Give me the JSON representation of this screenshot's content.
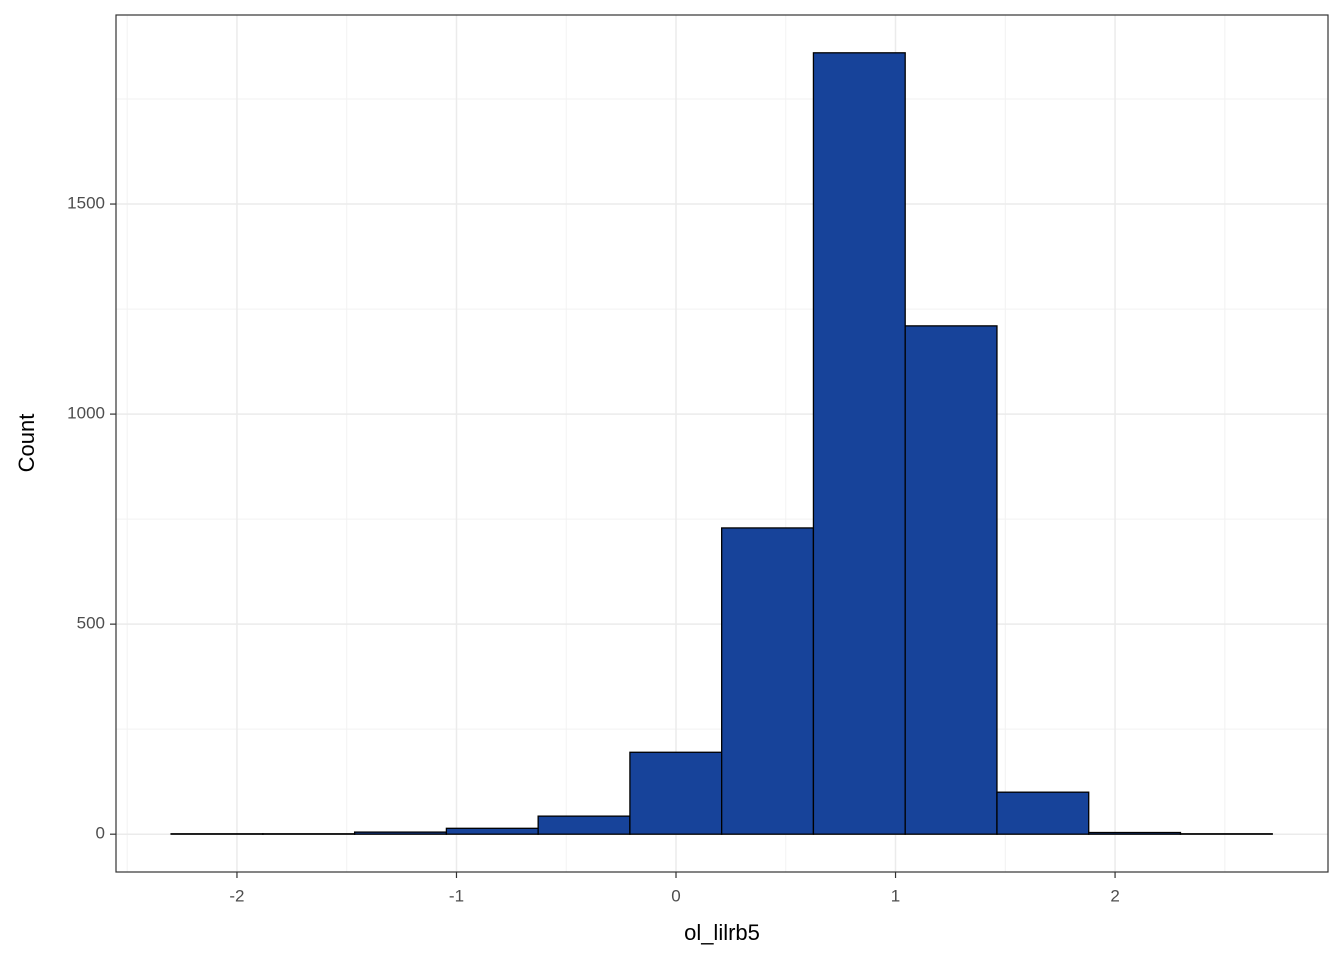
{
  "chart_data": {
    "type": "histogram",
    "x_label": "ol_lilrb5",
    "y_label": "Count",
    "bins": [
      -2.3,
      -1.882,
      -1.464,
      -1.046,
      -0.628,
      -0.21,
      0.208,
      0.626,
      1.044,
      1.462,
      1.88,
      2.298,
      2.716
    ],
    "counts": [
      1,
      1,
      5,
      14,
      43,
      195,
      729,
      1860,
      1210,
      100,
      4,
      1
    ],
    "color": "#17439a",
    "xlim": [
      -2.551,
      2.97
    ],
    "xticks": [
      -2,
      -1,
      0,
      1,
      2
    ],
    "ylim": [
      -90,
      1950
    ],
    "yticks": [
      0,
      500,
      1000,
      1500
    ],
    "grid": true
  }
}
